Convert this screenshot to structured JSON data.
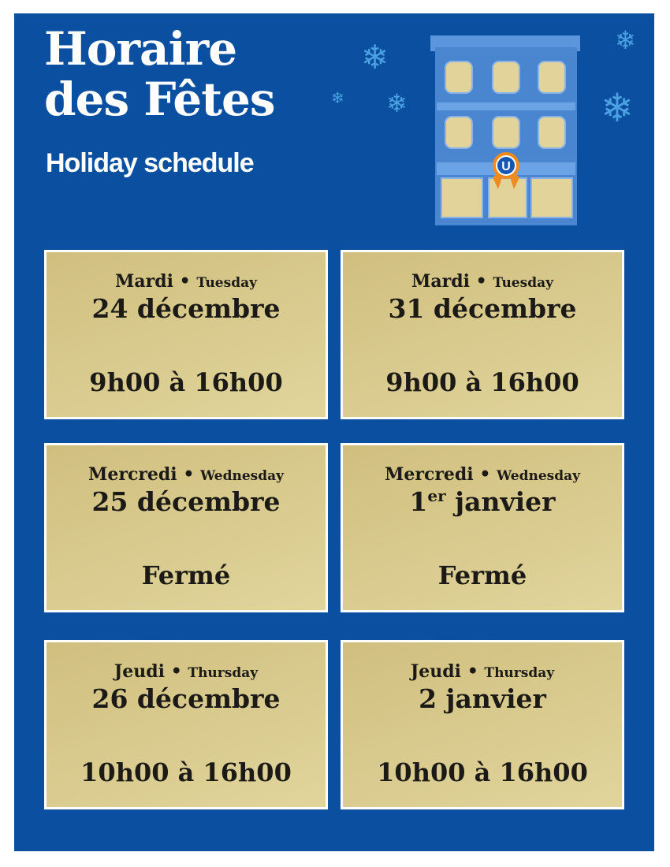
{
  "header": {
    "title_line1": "Horaire",
    "title_line2": "des Fêtes",
    "subtitle": "Holiday schedule",
    "logo_letter": "U"
  },
  "colors": {
    "background": "#0a4fa0",
    "card": "#d8c98d",
    "text": "#1c1a17",
    "building": "#4a86d0",
    "bow": "#f08a1c"
  },
  "schedule": [
    {
      "day_fr": "Mardi",
      "day_en": "Tuesday",
      "date": "24 décembre",
      "date_sup": "",
      "hours": "9h00 à 16h00"
    },
    {
      "day_fr": "Mardi",
      "day_en": "Tuesday",
      "date": "31 décembre",
      "date_sup": "",
      "hours": "9h00 à 16h00"
    },
    {
      "day_fr": "Mercredi",
      "day_en": "Wednesday",
      "date": "25 décembre",
      "date_sup": "",
      "hours": "Fermé"
    },
    {
      "day_fr": "Mercredi",
      "day_en": "Wednesday",
      "date_pre": "1",
      "date_sup": "er",
      "date": " janvier",
      "hours": "Fermé"
    },
    {
      "day_fr": "Jeudi",
      "day_en": "Thursday",
      "date": "26 décembre",
      "date_sup": "",
      "hours": "10h00 à 16h00"
    },
    {
      "day_fr": "Jeudi",
      "day_en": "Thursday",
      "date": "2 janvier",
      "date_sup": "",
      "hours": "10h00 à 16h00"
    }
  ]
}
